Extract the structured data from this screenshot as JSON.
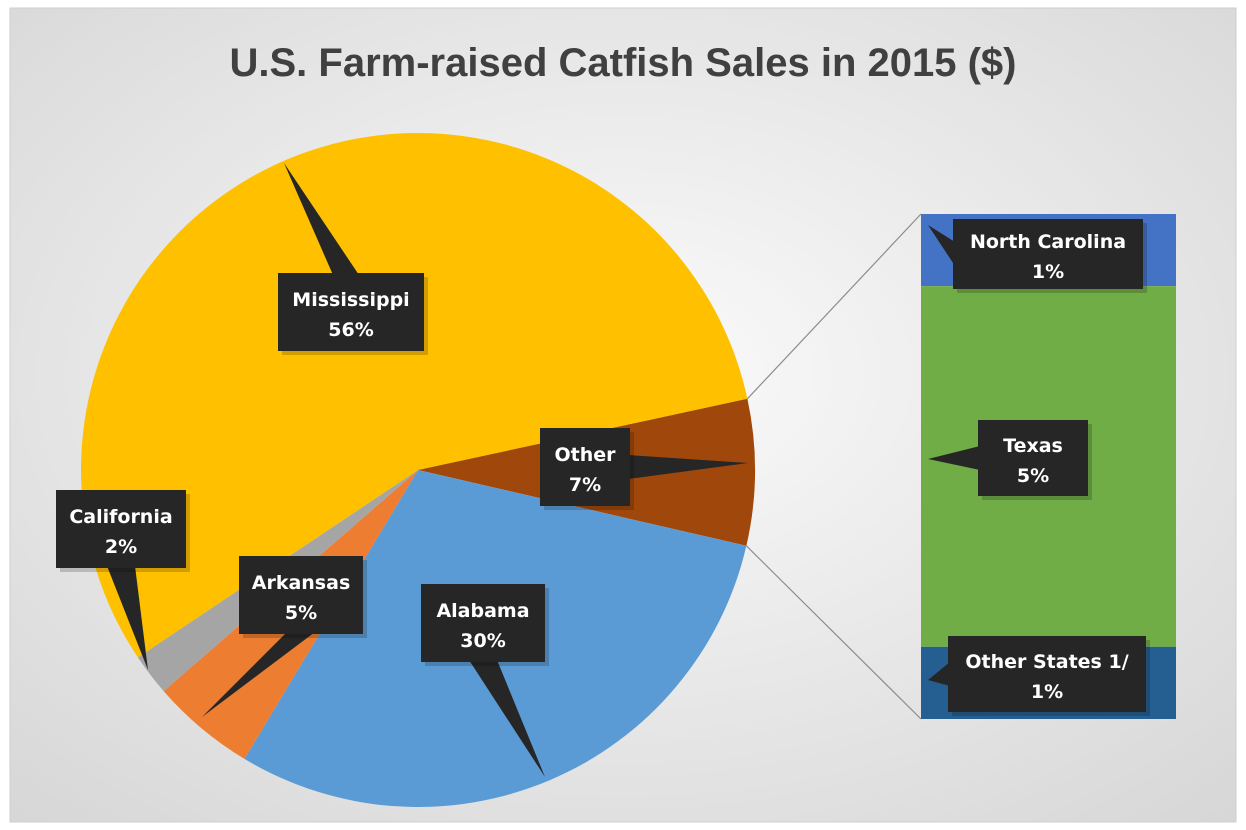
{
  "chart_data": {
    "type": "bar-of-pie",
    "title": "U.S. Farm-raised Catfish Sales in 2015 ($)",
    "pie": [
      {
        "name": "Mississippi",
        "label": "56%",
        "value": 56,
        "color": "#FFC000"
      },
      {
        "name": "Other",
        "label": "7%",
        "value": 7,
        "color": "#A0480C"
      },
      {
        "name": "Alabama",
        "label": "30%",
        "value": 30,
        "color": "#5B9BD5"
      },
      {
        "name": "Arkansas",
        "label": "5%",
        "value": 5,
        "color": "#ED7D31"
      },
      {
        "name": "California",
        "label": "2%",
        "value": 2,
        "color": "#A5A5A5"
      }
    ],
    "bar": [
      {
        "name": "North Carolina",
        "label": "1%",
        "value": 1,
        "color": "#4472C4"
      },
      {
        "name": "Texas",
        "label": "5%",
        "value": 5,
        "color": "#70AD47"
      },
      {
        "name": "Other States 1/",
        "label": "1%",
        "value": 1,
        "color": "#255E91"
      }
    ],
    "background": "#E8E8E8",
    "label_box_color": "#262626"
  }
}
